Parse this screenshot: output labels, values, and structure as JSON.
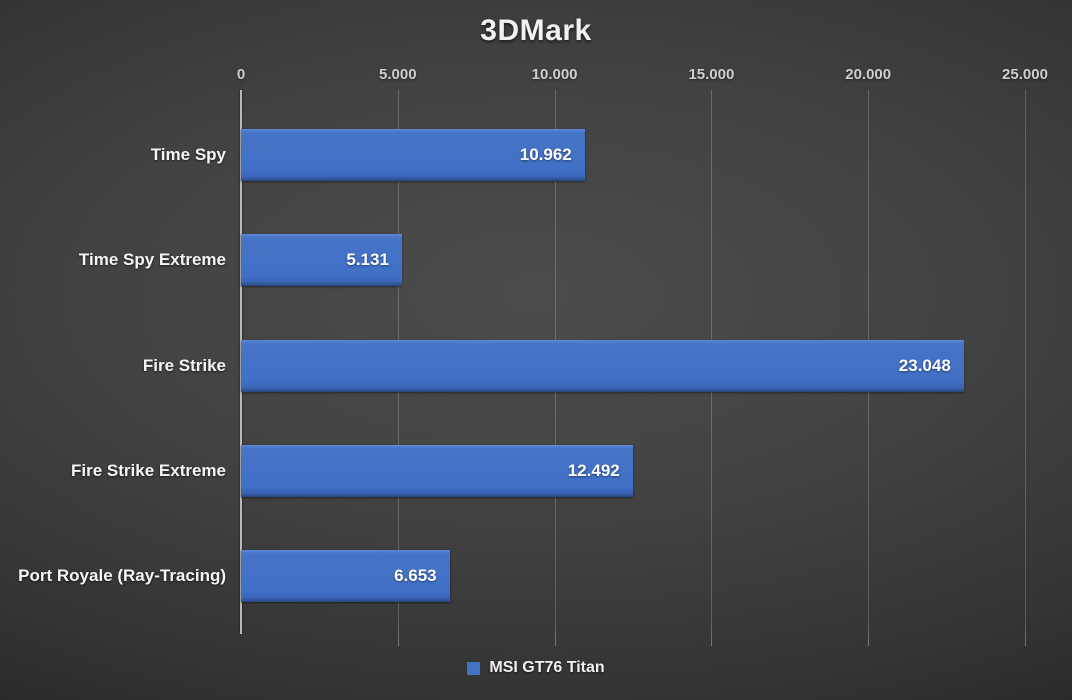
{
  "title": "3DMark",
  "chart_data": {
    "type": "bar",
    "orientation": "horizontal",
    "title": "3DMark",
    "categories": [
      "Time Spy",
      "Time Spy Extreme",
      "Fire Strike",
      "Fire Strike Extreme",
      "Port Royale (Ray-Tracing)"
    ],
    "series": [
      {
        "name": "MSI GT76 Titan",
        "values": [
          10962,
          5131,
          23048,
          12492,
          6653
        ],
        "value_labels": [
          "10.962",
          "5.131",
          "23.048",
          "12.492",
          "6.653"
        ],
        "color": "#4472C4"
      }
    ],
    "xlim": [
      0,
      25000
    ],
    "x_ticks": [
      {
        "value": 0,
        "label": "0"
      },
      {
        "value": 5000,
        "label": "5.000"
      },
      {
        "value": 10000,
        "label": "10.000"
      },
      {
        "value": 15000,
        "label": "15.000"
      },
      {
        "value": 20000,
        "label": "20.000"
      },
      {
        "value": 25000,
        "label": "25.000"
      }
    ],
    "grid": "vertical",
    "legend_position": "bottom"
  },
  "legend": {
    "items": [
      {
        "label": "MSI GT76 Titan",
        "color": "#4472C4"
      }
    ]
  },
  "colors": {
    "bar": "#4472C4",
    "background_center": "#4c4c4c",
    "background_edge": "#191919",
    "gridline": "rgba(255,255,255,0.20)",
    "axis_line": "#b9b9b9",
    "text": "#f2f2f2",
    "tick_text": "#cfcfcf"
  }
}
